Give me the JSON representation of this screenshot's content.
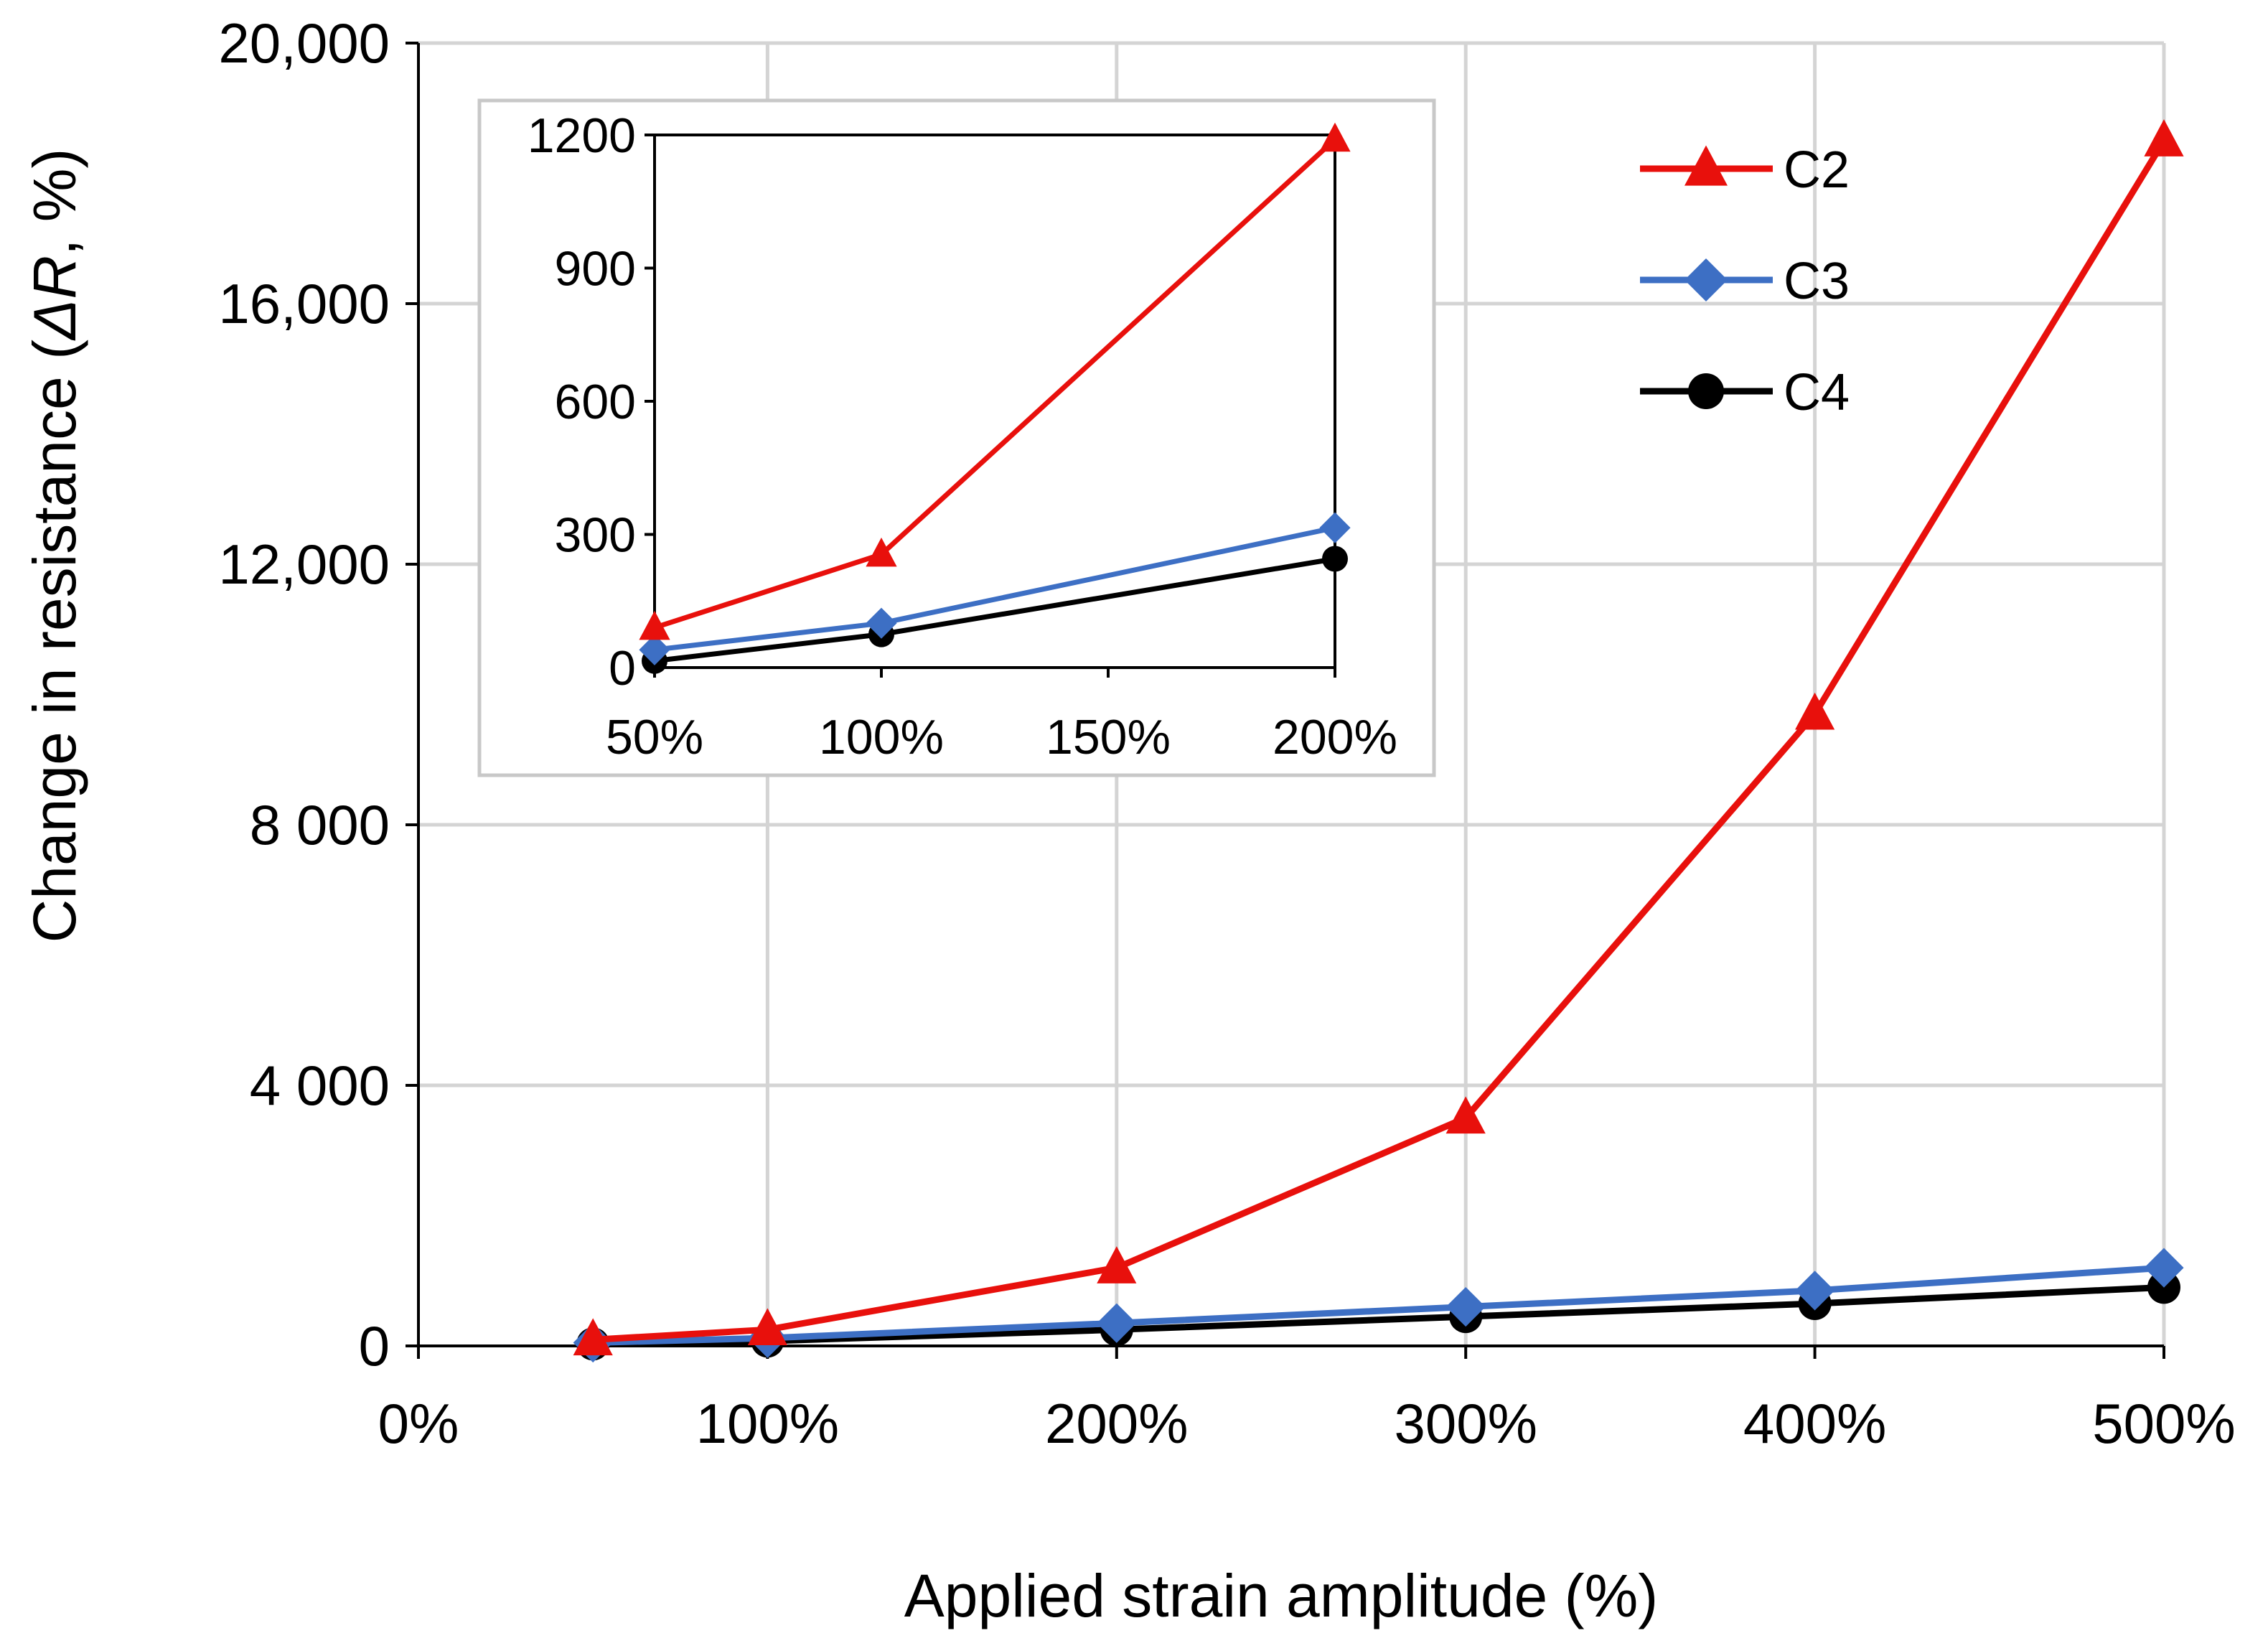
{
  "chart_data": [
    {
      "id": "main",
      "type": "line",
      "xlabel": "Applied strain amplitude (%)",
      "ylabel_prefix": "Change in resistance (",
      "ylabel_symbol": "ΔR",
      "ylabel_suffix": ", %)",
      "xlim": [
        0,
        500
      ],
      "ylim": [
        0,
        20000
      ],
      "xticks": [
        {
          "value": 0,
          "label": "0%"
        },
        {
          "value": 100,
          "label": "100%"
        },
        {
          "value": 200,
          "label": "200%"
        },
        {
          "value": 300,
          "label": "300%"
        },
        {
          "value": 400,
          "label": "400%"
        },
        {
          "value": 500,
          "label": "500%"
        }
      ],
      "yticks": [
        {
          "value": 0,
          "label": "0"
        },
        {
          "value": 4000,
          "label": "4 000"
        },
        {
          "value": 8000,
          "label": "8 000"
        },
        {
          "value": 12000,
          "label": "12,000"
        },
        {
          "value": 16000,
          "label": "16,000"
        },
        {
          "value": 20000,
          "label": "20,000"
        }
      ],
      "grid": true,
      "legend_position": "top-right",
      "series": [
        {
          "name": "C2",
          "color": "#e8100c",
          "marker": "triangle",
          "x": [
            50,
            100,
            200,
            300,
            400,
            500
          ],
          "values": [
            95,
            250,
            1200,
            3500,
            9700,
            18500
          ]
        },
        {
          "name": "C3",
          "color": "#3d6fc4",
          "marker": "diamond",
          "x": [
            50,
            100,
            200,
            300,
            400,
            500
          ],
          "values": [
            50,
            120,
            350,
            600,
            850,
            1200
          ]
        },
        {
          "name": "C4",
          "color": "#000000",
          "marker": "circle",
          "x": [
            50,
            100,
            200,
            300,
            400,
            500
          ],
          "values": [
            30,
            75,
            250,
            450,
            650,
            900
          ]
        }
      ]
    },
    {
      "id": "inset",
      "type": "line",
      "xlim": [
        50,
        200
      ],
      "ylim": [
        0,
        1200
      ],
      "xticks": [
        {
          "value": 50,
          "label": "50%"
        },
        {
          "value": 100,
          "label": "100%"
        },
        {
          "value": 150,
          "label": "150%"
        },
        {
          "value": 200,
          "label": "200%"
        }
      ],
      "yticks": [
        {
          "value": 0,
          "label": "0"
        },
        {
          "value": 300,
          "label": "300"
        },
        {
          "value": 600,
          "label": "600"
        },
        {
          "value": 900,
          "label": "900"
        },
        {
          "value": 1200,
          "label": "1200"
        }
      ],
      "grid": false,
      "series": [
        {
          "name": "C2",
          "color": "#e8100c",
          "marker": "triangle",
          "x": [
            50,
            100,
            200
          ],
          "values": [
            90,
            255,
            1190
          ]
        },
        {
          "name": "C3",
          "color": "#3d6fc4",
          "marker": "diamond",
          "x": [
            50,
            100,
            200
          ],
          "values": [
            40,
            100,
            315
          ]
        },
        {
          "name": "C4",
          "color": "#000000",
          "marker": "circle",
          "x": [
            50,
            100,
            200
          ],
          "values": [
            15,
            75,
            245
          ]
        }
      ]
    }
  ]
}
